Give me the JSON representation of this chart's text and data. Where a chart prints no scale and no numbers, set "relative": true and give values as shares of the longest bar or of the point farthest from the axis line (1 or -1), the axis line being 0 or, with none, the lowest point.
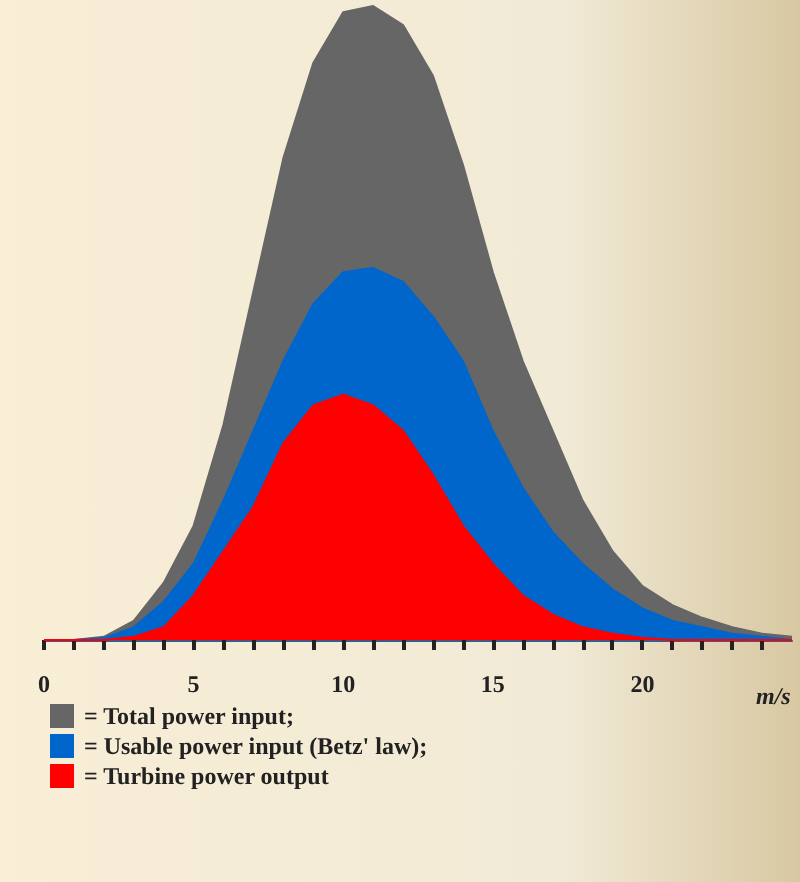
{
  "chart_data": {
    "type": "area",
    "relative": true,
    "xlabel": "m/s",
    "x": [
      0,
      1,
      2,
      3,
      4,
      5,
      6,
      7,
      8,
      9,
      10,
      11,
      12,
      13,
      14,
      15,
      16,
      17,
      18,
      19,
      20,
      21,
      22,
      23,
      24,
      25
    ],
    "xlim": [
      0,
      25
    ],
    "xticks": [
      0,
      {
        "value": 1,
        "label": null
      },
      {
        "value": 2,
        "label": null
      },
      {
        "value": 3,
        "label": null
      },
      {
        "value": 4,
        "label": null
      },
      5,
      {
        "value": 6,
        "label": null
      },
      {
        "value": 7,
        "label": null
      },
      {
        "value": 8,
        "label": null
      },
      {
        "value": 9,
        "label": null
      },
      10,
      {
        "value": 11,
        "label": null
      },
      {
        "value": 12,
        "label": null
      },
      {
        "value": 13,
        "label": null
      },
      {
        "value": 14,
        "label": null
      },
      15,
      {
        "value": 16,
        "label": null
      },
      {
        "value": 17,
        "label": null
      },
      {
        "value": 18,
        "label": null
      },
      {
        "value": 19,
        "label": null
      },
      20,
      {
        "value": 21,
        "label": null
      },
      {
        "value": 22,
        "label": null
      },
      {
        "value": 23,
        "label": null
      },
      {
        "value": 24,
        "label": null
      }
    ],
    "series": [
      {
        "name": "= Total power input;",
        "color": "#666666",
        "values": [
          0,
          0,
          0.005,
          0.03,
          0.09,
          0.18,
          0.34,
          0.55,
          0.76,
          0.91,
          0.99,
          1.0,
          0.97,
          0.89,
          0.75,
          0.58,
          0.44,
          0.33,
          0.22,
          0.14,
          0.085,
          0.055,
          0.035,
          0.02,
          0.01,
          0.005
        ]
      },
      {
        "name": "= Usable power input (Betz' law);",
        "color": "#0066cc",
        "values": [
          0,
          0,
          0.003,
          0.02,
          0.06,
          0.12,
          0.22,
          0.33,
          0.44,
          0.53,
          0.58,
          0.587,
          0.565,
          0.51,
          0.44,
          0.33,
          0.24,
          0.17,
          0.12,
          0.08,
          0.05,
          0.03,
          0.02,
          0.01,
          0.005,
          0
        ]
      },
      {
        "name": "= Turbine power output",
        "color": "#ff0000",
        "values": [
          0,
          0,
          0,
          0.005,
          0.02,
          0.07,
          0.14,
          0.21,
          0.31,
          0.37,
          0.387,
          0.37,
          0.33,
          0.26,
          0.18,
          0.12,
          0.07,
          0.04,
          0.02,
          0.01,
          0.003,
          0,
          0,
          0,
          0,
          0
        ]
      }
    ],
    "legend": "bottom left",
    "grid": false
  }
}
